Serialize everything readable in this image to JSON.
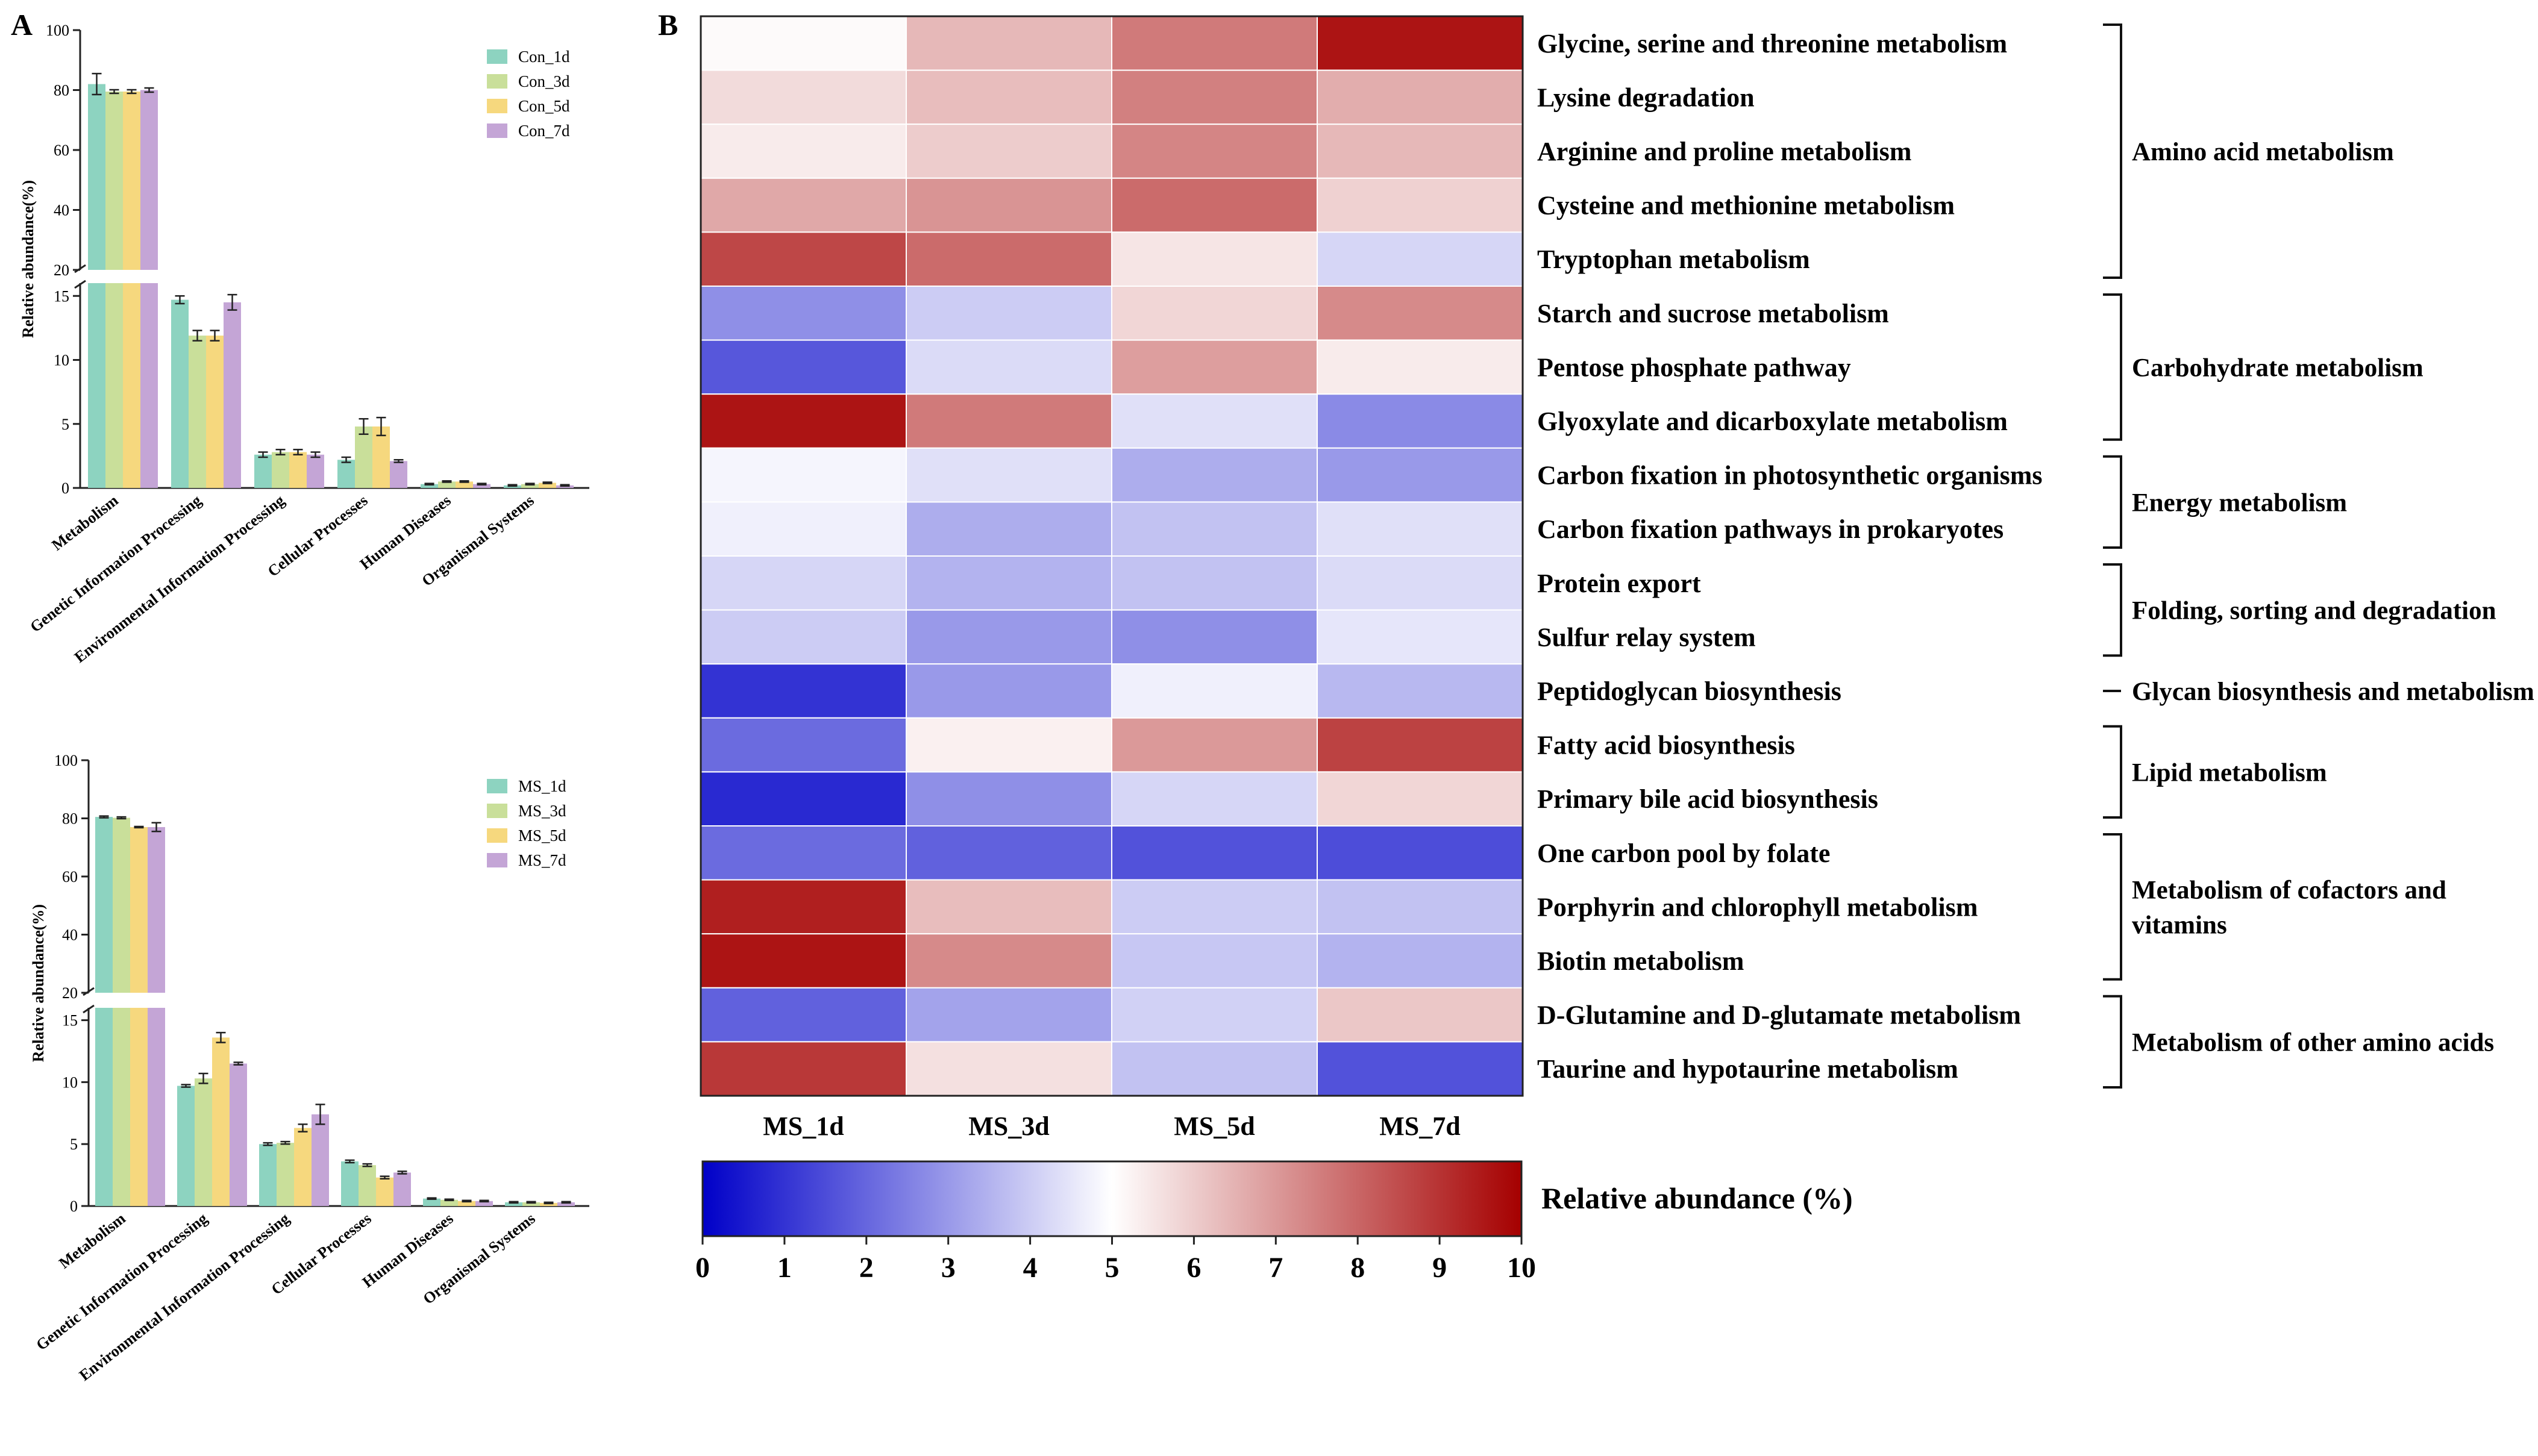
{
  "panel_labels": {
    "a": "A",
    "b": "B"
  },
  "colors": {
    "d1": "#8DD3C0",
    "d3": "#C9DF9A",
    "d5": "#F6D87E",
    "d7": "#C4A5D6",
    "cold": "#0000C8",
    "mid": "#FFFFFF",
    "hot": "#A50000",
    "axis": "#222222"
  },
  "chart_data": [
    {
      "id": "con",
      "type": "bar",
      "title": "",
      "ylabel": "Relative abundance(%)",
      "xlabel": "",
      "broken_axis": {
        "lower": [
          0,
          16
        ],
        "upper": [
          20,
          100
        ]
      },
      "yticks_lower": [
        0,
        5,
        10,
        15
      ],
      "yticks_upper": [
        20,
        40,
        60,
        80,
        100
      ],
      "categories": [
        "Metabolism",
        "Genetic Information Processing",
        "Environmental Information Processing",
        "Cellular Processes",
        "Human Diseases",
        "Organismal Systems"
      ],
      "legend_position": "top-right",
      "series": [
        {
          "name": "Con_1d",
          "values": [
            82.0,
            14.7,
            2.6,
            2.2,
            0.3,
            0.2
          ],
          "errors": [
            3.5,
            0.3,
            0.2,
            0.2,
            0.05,
            0.05
          ]
        },
        {
          "name": "Con_3d",
          "values": [
            79.5,
            11.9,
            2.8,
            4.8,
            0.5,
            0.3
          ],
          "errors": [
            0.6,
            0.4,
            0.2,
            0.6,
            0.05,
            0.05
          ]
        },
        {
          "name": "Con_5d",
          "values": [
            79.5,
            11.9,
            2.8,
            4.8,
            0.5,
            0.4
          ],
          "errors": [
            0.6,
            0.4,
            0.2,
            0.7,
            0.05,
            0.05
          ]
        },
        {
          "name": "Con_7d",
          "values": [
            80.0,
            14.5,
            2.6,
            2.1,
            0.3,
            0.2
          ],
          "errors": [
            0.7,
            0.6,
            0.2,
            0.1,
            0.05,
            0.05
          ]
        }
      ]
    },
    {
      "id": "ms",
      "type": "bar",
      "title": "",
      "ylabel": "Relative abundance(%)",
      "xlabel": "",
      "broken_axis": {
        "lower": [
          0,
          16
        ],
        "upper": [
          20,
          100
        ]
      },
      "yticks_lower": [
        0,
        5,
        10,
        15
      ],
      "yticks_upper": [
        20,
        40,
        60,
        80,
        100
      ],
      "categories": [
        "Metabolism",
        "Genetic Information Processing",
        "Environmental Information Processing",
        "Cellular Processes",
        "Human Diseases",
        "Organismal Systems"
      ],
      "legend_position": "top-right",
      "series": [
        {
          "name": "MS_1d",
          "values": [
            80.5,
            9.7,
            5.0,
            3.6,
            0.6,
            0.3
          ],
          "errors": [
            0.3,
            0.1,
            0.1,
            0.1,
            0.05,
            0.05
          ]
        },
        {
          "name": "MS_3d",
          "values": [
            80.2,
            10.3,
            5.1,
            3.3,
            0.5,
            0.3
          ],
          "errors": [
            0.3,
            0.4,
            0.1,
            0.1,
            0.05,
            0.05
          ]
        },
        {
          "name": "MS_5d",
          "values": [
            77.0,
            13.6,
            6.3,
            2.3,
            0.4,
            0.25
          ],
          "errors": [
            0.2,
            0.4,
            0.3,
            0.1,
            0.05,
            0.05
          ]
        },
        {
          "name": "MS_7d",
          "values": [
            77.0,
            11.5,
            7.4,
            2.7,
            0.4,
            0.3
          ],
          "errors": [
            1.5,
            0.1,
            0.8,
            0.1,
            0.05,
            0.05
          ]
        }
      ]
    },
    {
      "id": "heatmap",
      "type": "heatmap",
      "title": "",
      "columns": [
        "MS_1d",
        "MS_3d",
        "MS_5d",
        "MS_7d"
      ],
      "rows": [
        "Glycine, serine and threonine metabolism",
        "Lysine degradation",
        "Arginine and proline metabolism",
        "Cysteine and methionine metabolism",
        "Tryptophan metabolism",
        "Starch and sucrose metabolism",
        "Pentose phosphate pathway",
        "Glyoxylate and dicarboxylate metabolism",
        "Carbon fixation in photosynthetic organisms",
        "Carbon fixation pathways in prokaryotes",
        "Protein export",
        "Sulfur relay system",
        "Peptidoglycan biosynthesis",
        "Fatty acid biosynthesis",
        "Primary bile acid biosynthesis",
        "One carbon pool by folate",
        "Porphyrin and chlorophyll metabolism",
        "Biotin metabolism",
        "D-Glutamine and D-glutamate metabolism",
        "Taurine and hypotaurine metabolism"
      ],
      "values": [
        [
          5.1,
          6.4,
          7.6,
          9.6
        ],
        [
          5.7,
          6.3,
          7.5,
          6.6
        ],
        [
          5.4,
          6.0,
          7.4,
          6.4
        ],
        [
          6.7,
          7.1,
          7.9,
          5.9
        ],
        [
          8.6,
          7.9,
          5.5,
          4.2
        ],
        [
          2.8,
          4.0,
          5.8,
          7.3
        ],
        [
          1.7,
          4.3,
          6.9,
          5.4
        ],
        [
          9.6,
          7.6,
          4.4,
          2.7
        ],
        [
          4.8,
          4.4,
          3.4,
          3.0
        ],
        [
          4.7,
          3.4,
          3.8,
          4.4
        ],
        [
          4.2,
          3.5,
          3.8,
          4.3
        ],
        [
          4.0,
          3.0,
          2.8,
          4.5
        ],
        [
          1.0,
          3.0,
          4.7,
          3.6
        ],
        [
          2.1,
          5.3,
          7.0,
          8.7
        ],
        [
          0.8,
          2.8,
          4.2,
          5.8
        ],
        [
          2.1,
          1.9,
          1.6,
          1.5
        ],
        [
          9.4,
          6.3,
          4.0,
          3.8
        ],
        [
          9.6,
          7.3,
          3.9,
          3.5
        ],
        [
          1.9,
          3.2,
          4.1,
          6.1
        ],
        [
          8.9,
          5.6,
          3.8,
          1.6
        ]
      ],
      "groups": [
        {
          "label": "Amino acid metabolism",
          "start": 0,
          "end": 4
        },
        {
          "label": "Carbohydrate  metabolism",
          "start": 5,
          "end": 7
        },
        {
          "label": "Energy metabolism",
          "start": 8,
          "end": 9
        },
        {
          "label": "Folding, sorting and degradation",
          "start": 10,
          "end": 11
        },
        {
          "label": "Glycan biosynthesis and metabolism",
          "start": 12,
          "end": 12
        },
        {
          "label": "Lipid metabolism",
          "start": 13,
          "end": 14
        },
        {
          "label": "Metabolism of cofactors and vitamins",
          "start": 15,
          "end": 17
        },
        {
          "label": "Metabolism of other amino acids",
          "start": 18,
          "end": 19
        }
      ],
      "colorbar": {
        "label": "Relative abundance (%)",
        "range": [
          0,
          10
        ],
        "ticks": [
          0,
          1,
          2,
          3,
          4,
          5,
          6,
          7,
          8,
          9,
          10
        ]
      }
    }
  ]
}
